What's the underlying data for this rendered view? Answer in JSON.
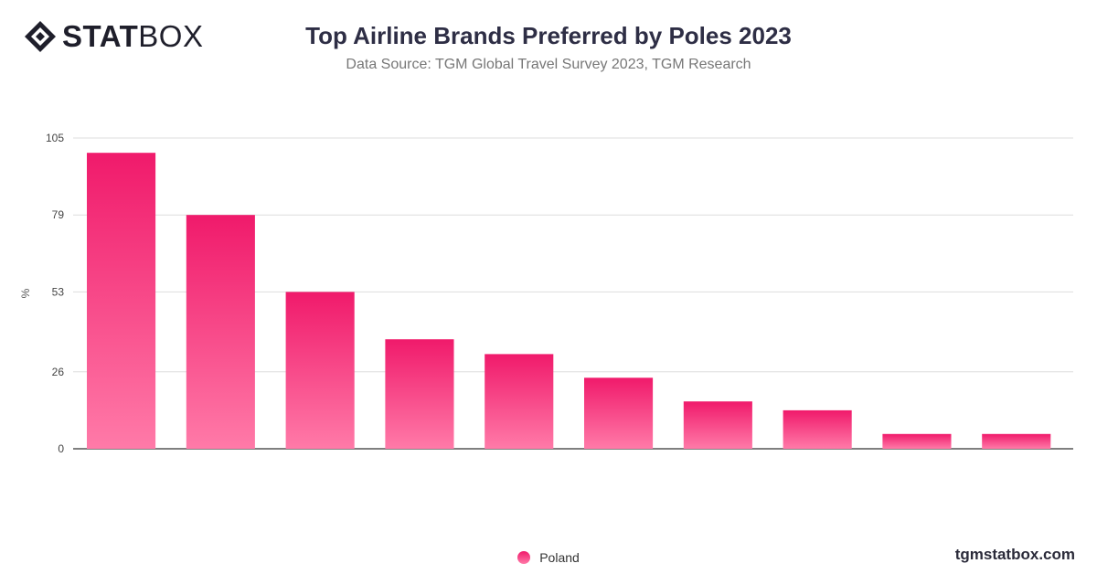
{
  "brand": {
    "logo_bold": "STAT",
    "logo_light": "BOX",
    "site": "tgmstatbox.com"
  },
  "chart_data": {
    "type": "bar",
    "title": "Top Airline Brands Preferred by Poles 2023",
    "subtitle": "Data Source: TGM Global Travel Survey 2023, TGM Research",
    "ylabel": "%",
    "ylim": [
      0,
      105
    ],
    "yticks": [
      0,
      26,
      53,
      79,
      105
    ],
    "grid": true,
    "legend_placement": "bottom",
    "colors": {
      "bar_top": "#f01a6b",
      "bar_bottom": "#ff7aa8",
      "grid": "#dddddd"
    },
    "categories": [
      "",
      "",
      "",
      "",
      "",
      "",
      "",
      "",
      "",
      ""
    ],
    "series": [
      {
        "name": "Poland",
        "values": [
          100,
          79,
          53,
          37,
          32,
          24,
          16,
          13,
          5,
          5
        ]
      }
    ]
  }
}
